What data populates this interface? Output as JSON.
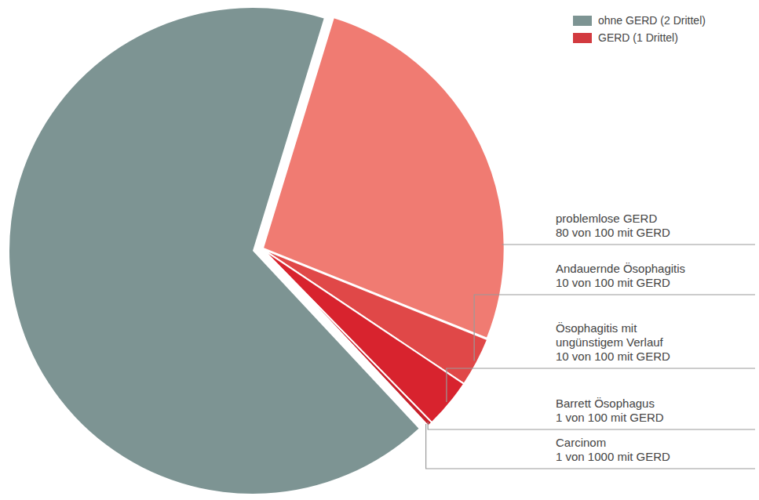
{
  "chart_data": {
    "type": "pie",
    "categories": [
      "ohne GERD (2 Drittel)",
      "GERD (1 Drittel)"
    ],
    "values": [
      2,
      1
    ],
    "colors": [
      "#7d9493",
      "#d23a3f"
    ],
    "legend": "top-right",
    "breakdown": {
      "categories": [
        "problemlose GERD",
        "Andauernde Ösophagitis",
        "Ösophagitis mit ungünstigem Verlauf",
        "Barrett Ösophagus",
        "Carcinom"
      ],
      "values": [
        80,
        10,
        10,
        1,
        0.1
      ],
      "value_labels": [
        "80 von 100 mit GERD",
        "10 von 100 mit GERD",
        "10 von 100 mit GERD",
        "1 von 100 mit GERD",
        "1 von 1000 mit GERD"
      ],
      "colors": [
        "#f07b72",
        "#e04848",
        "#d8232e",
        "#c8202a",
        "#b81c24"
      ]
    }
  }
}
